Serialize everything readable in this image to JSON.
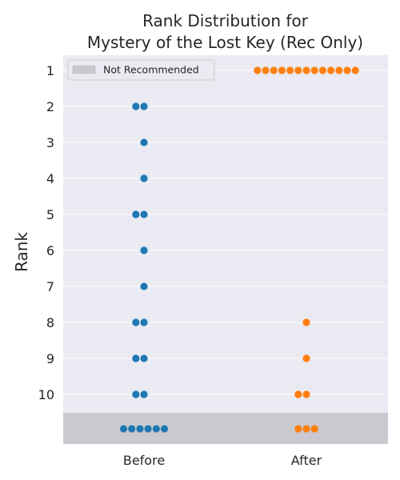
{
  "chart_data": {
    "type": "scatter",
    "title_lines": [
      "Rank Distribution for",
      "Mystery of the Lost Key (Rec Only)"
    ],
    "ylabel": "Rank",
    "categories": [
      "Before",
      "After"
    ],
    "y_ticks": [
      "1",
      "2",
      "3",
      "4",
      "5",
      "6",
      "7",
      "8",
      "9",
      "10"
    ],
    "y_inverted": true,
    "grid": true,
    "legend": {
      "position": "top-left",
      "entries": [
        {
          "label": "Not Recommended",
          "color": "#c8c7cd"
        }
      ]
    },
    "not_recommended_band": true,
    "series": [
      {
        "category": "Before",
        "color": "#1f77b4",
        "points": [
          {
            "rank": 2,
            "count": 2
          },
          {
            "rank": 3,
            "count": 1
          },
          {
            "rank": 4,
            "count": 1
          },
          {
            "rank": 5,
            "count": 2
          },
          {
            "rank": 6,
            "count": 1
          },
          {
            "rank": 7,
            "count": 1
          },
          {
            "rank": 8,
            "count": 2
          },
          {
            "rank": 9,
            "count": 2
          },
          {
            "rank": 10,
            "count": 2
          },
          {
            "rank": "not_recommended",
            "count": 6
          }
        ]
      },
      {
        "category": "After",
        "color": "#ff7f0e",
        "points": [
          {
            "rank": 1,
            "count": 13
          },
          {
            "rank": 8,
            "count": 1
          },
          {
            "rank": 9,
            "count": 1
          },
          {
            "rank": 10,
            "count": 2
          },
          {
            "rank": "not_recommended",
            "count": 3
          }
        ]
      }
    ]
  }
}
